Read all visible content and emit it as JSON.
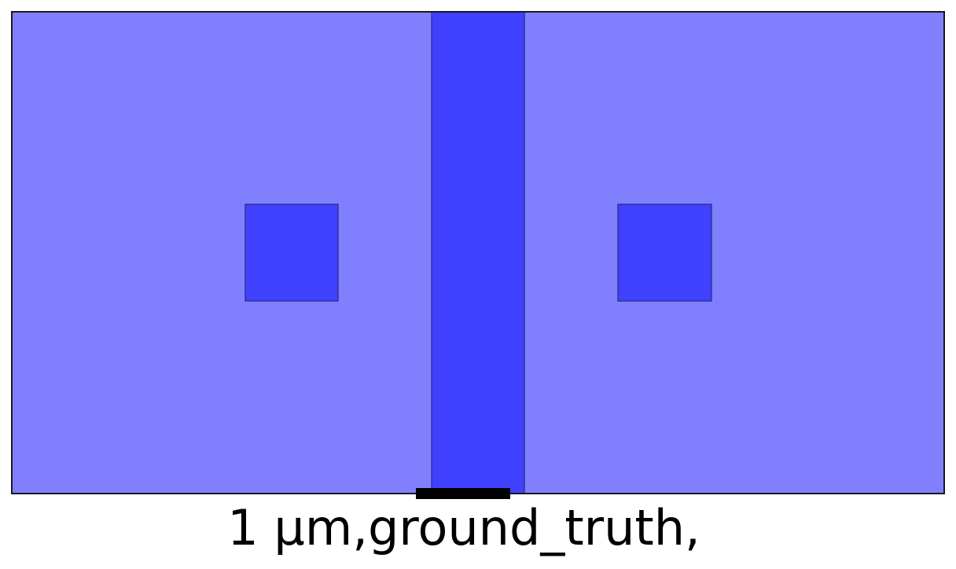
{
  "caption": "1 µm,ground_truth,",
  "colors": {
    "background_region": "#8080ff",
    "feature": "#4040ff",
    "feature_edge": "#333399",
    "frame": "#1a1a1a",
    "scale_bar": "#000000"
  },
  "features": [
    {
      "kind": "vertical-strip"
    },
    {
      "kind": "square"
    },
    {
      "kind": "square"
    }
  ],
  "scale_bar": {
    "length_label": "1 µm"
  }
}
